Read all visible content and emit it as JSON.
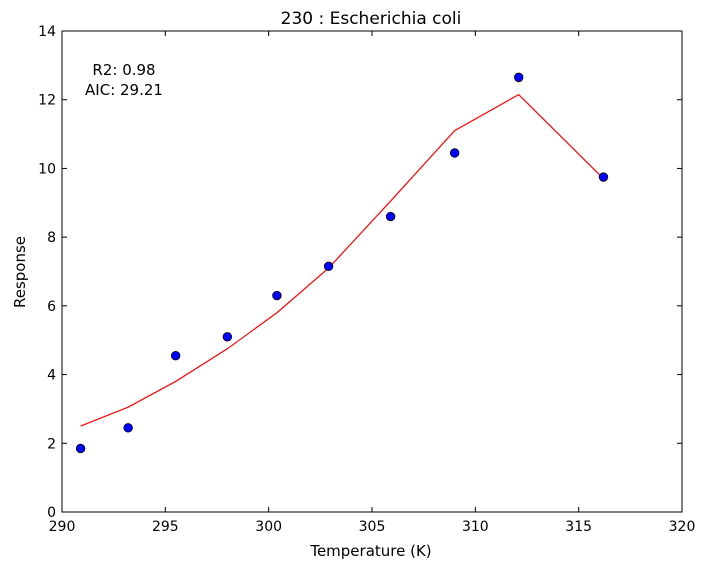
{
  "chart_data": {
    "type": "scatter",
    "title": "230 : Escherichia coli",
    "xlabel": "Temperature (K)",
    "ylabel": "Response",
    "xlim": [
      290,
      320
    ],
    "ylim": [
      0,
      14
    ],
    "xticks": [
      290,
      295,
      300,
      305,
      310,
      315,
      320
    ],
    "yticks": [
      0,
      2,
      4,
      6,
      8,
      10,
      12,
      14
    ],
    "grid": false,
    "annotations": [
      "R2: 0.98",
      "AIC: 29.21"
    ],
    "colors": {
      "points": "#0000ff",
      "fit": "#ff0000"
    },
    "series": [
      {
        "kind": "points",
        "x": [
          290.9,
          293.2,
          295.5,
          298.0,
          300.4,
          302.9,
          305.9,
          309.0,
          312.1,
          316.2
        ],
        "y": [
          1.85,
          2.45,
          4.55,
          5.1,
          6.3,
          7.15,
          8.6,
          10.45,
          12.65,
          9.75
        ]
      },
      {
        "kind": "fit",
        "x": [
          290.9,
          293.2,
          295.5,
          298.0,
          300.4,
          302.9,
          305.9,
          309.0,
          312.1,
          316.2
        ],
        "y": [
          2.5,
          3.05,
          3.8,
          4.75,
          5.8,
          7.1,
          9.05,
          11.1,
          12.15,
          9.7
        ]
      }
    ]
  }
}
